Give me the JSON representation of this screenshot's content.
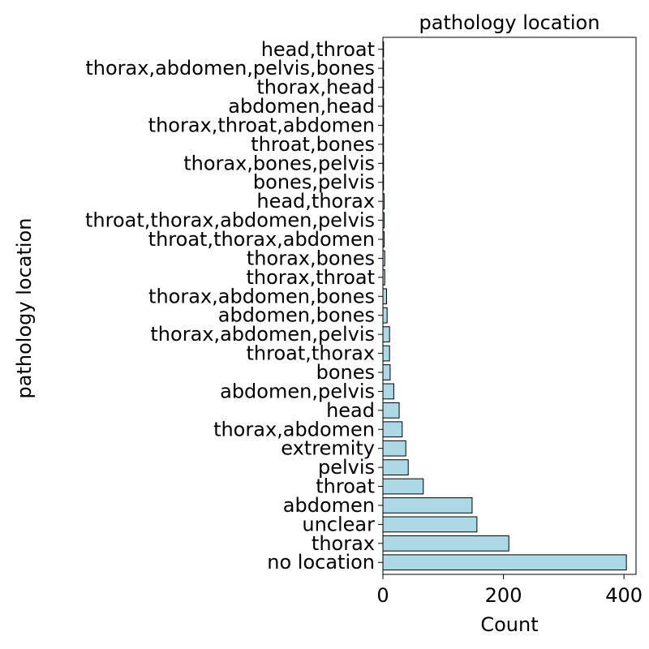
{
  "chart_data": {
    "type": "bar",
    "orientation": "horizontal",
    "title": "pathology location",
    "xlabel": "Count",
    "ylabel": "pathology location",
    "xlim": [
      0,
      420
    ],
    "xticks": [
      0,
      200,
      400
    ],
    "grid": false,
    "bar_color": "#add8e6",
    "bar_edge_color": "#000000",
    "categories": [
      "no location",
      "thorax",
      "unclear",
      "abdomen",
      "throat",
      "pelvis",
      "extremity",
      "thorax,abdomen",
      "head",
      "abdomen,pelvis",
      "bones",
      "throat,thorax",
      "thorax,abdomen,pelvis",
      "abdomen,bones",
      "thorax,abdomen,bones",
      "thorax,throat",
      "thorax,bones",
      "throat,thorax,abdomen",
      "throat,thorax,abdomen,pelvis",
      "head,thorax",
      "bones,pelvis",
      "thorax,bones,pelvis",
      "throat,bones",
      "thorax,throat,abdomen",
      "abdomen,head",
      "thorax,head",
      "thorax,abdomen,pelvis,bones",
      "head,throat"
    ],
    "values": [
      404,
      209,
      156,
      148,
      67,
      42,
      38,
      32,
      27,
      18,
      12,
      11,
      11,
      7,
      6,
      3,
      3,
      2,
      2,
      2,
      1,
      1,
      1,
      1,
      1,
      1,
      1,
      1
    ]
  }
}
